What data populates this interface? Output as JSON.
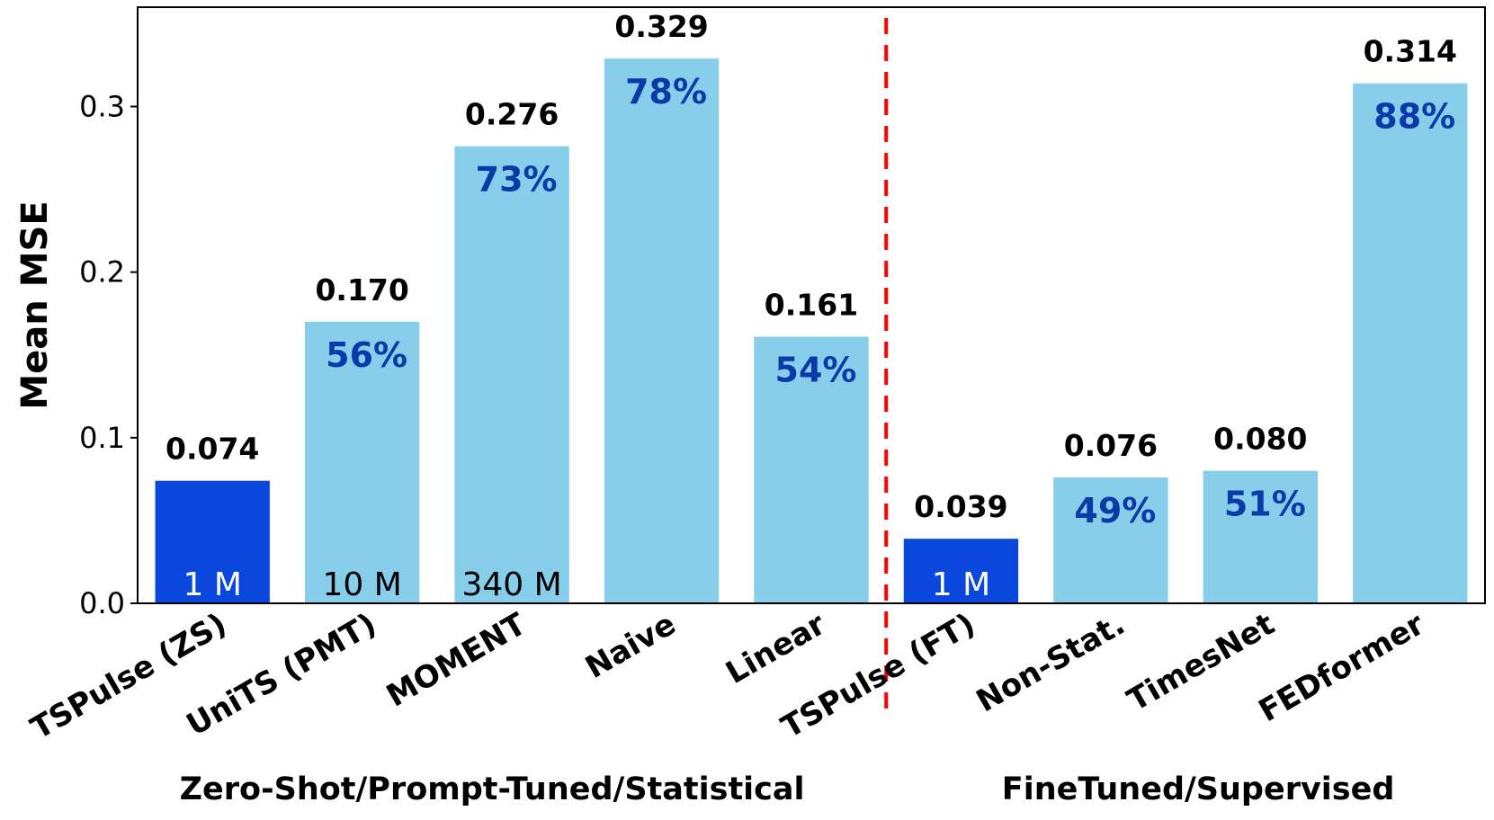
{
  "chart_data": {
    "type": "bar",
    "ylabel": "Mean MSE",
    "xlabel": "",
    "ylim": [
      0,
      0.36
    ],
    "yticks": [
      "0.0",
      "0.1",
      "0.2",
      "0.3"
    ],
    "categories": [
      "TSPulse (ZS)",
      "UniTS (PMT)",
      "MOMENT",
      "Naive",
      "Linear",
      "TSPulse (FT)",
      "Non-Stat.",
      "TimesNet",
      "FEDformer"
    ],
    "values": [
      0.074,
      0.17,
      0.276,
      0.329,
      0.161,
      0.039,
      0.076,
      0.08,
      0.314
    ],
    "value_labels": [
      "0.074",
      "0.170",
      "0.276",
      "0.329",
      "0.161",
      "0.039",
      "0.076",
      "0.080",
      "0.314"
    ],
    "percent_labels": [
      "",
      "56%",
      "73%",
      "78%",
      "54%",
      "",
      "49%",
      "51%",
      "88%"
    ],
    "param_labels": [
      "1 M",
      "10 M",
      "340 M",
      "",
      "",
      "1 M",
      "",
      "",
      ""
    ],
    "highlighted": [
      true,
      false,
      false,
      false,
      false,
      true,
      false,
      false,
      false
    ],
    "groups": [
      {
        "label": "Zero-Shot/Prompt-Tuned/Statistical",
        "categories": [
          0,
          1,
          2,
          3,
          4
        ]
      },
      {
        "label": "FineTuned/Supervised",
        "categories": [
          5,
          6,
          7,
          8
        ]
      }
    ],
    "separator_after_index": 4,
    "grid": false,
    "colors": {
      "highlight_bar": "#0a47dc",
      "bar": "#87ceeb",
      "percent_text": "#0a3aa8",
      "separator": "#ff0000",
      "param_text_on_highlight": "#ffffff",
      "param_text": "#000000"
    }
  }
}
